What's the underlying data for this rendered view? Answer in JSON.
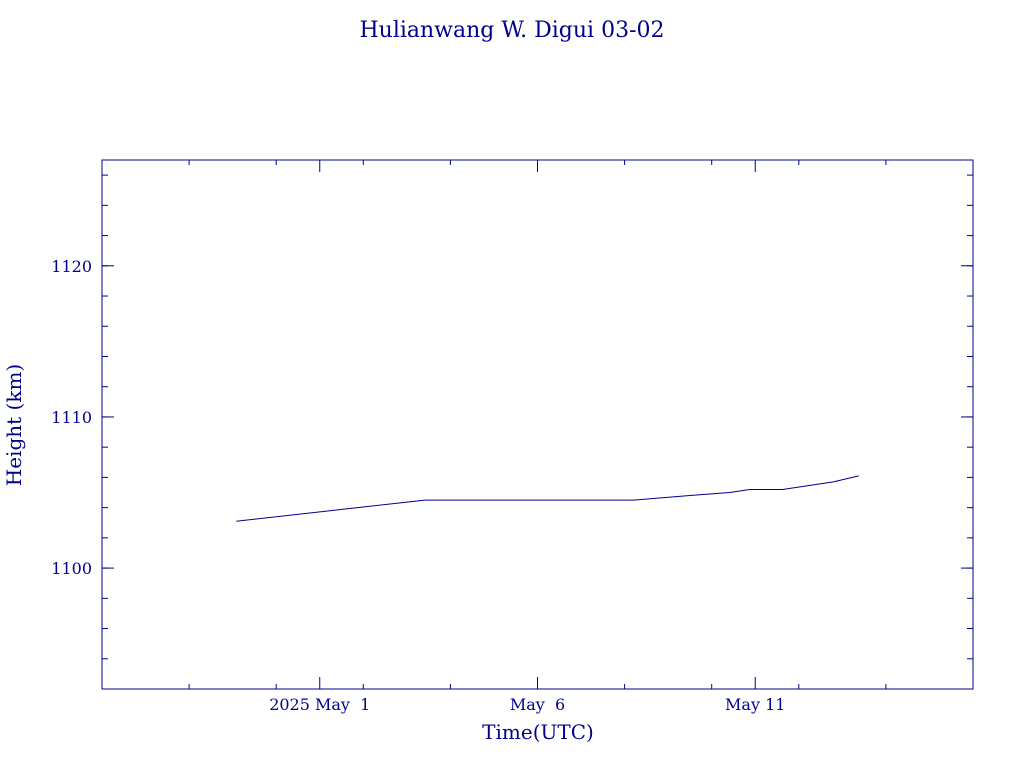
{
  "chart_data": {
    "type": "line",
    "title": "Hulianwang W. Digui 03-02",
    "xlabel": "Time(UTC)",
    "ylabel": "Height (km)",
    "x_ticks": [
      {
        "date": "2025-05-01",
        "label": "2025 May  1"
      },
      {
        "date": "2025-05-06",
        "label": "May  6"
      },
      {
        "date": "2025-05-11",
        "label": "May 11"
      }
    ],
    "y_ticks": [
      1100,
      1110,
      1120
    ],
    "xlim": [
      "2025-04-26",
      "2025-05-16"
    ],
    "ylim": [
      1092,
      1127
    ],
    "line_color": "#00008b",
    "series": [
      {
        "x": [
          "2025-04-29T02:00Z",
          "2025-05-03T10:00Z",
          "2025-05-08T05:00Z",
          "2025-05-09T12:00Z",
          "2025-05-10T10:00Z",
          "2025-05-10T21:00Z",
          "2025-05-11T15:00Z",
          "2025-05-12T19:00Z",
          "2025-05-13T09:00Z"
        ],
        "y": [
          1103.1,
          1104.5,
          1104.5,
          1104.8,
          1105.0,
          1105.2,
          1105.2,
          1105.7,
          1106.1
        ]
      }
    ]
  }
}
